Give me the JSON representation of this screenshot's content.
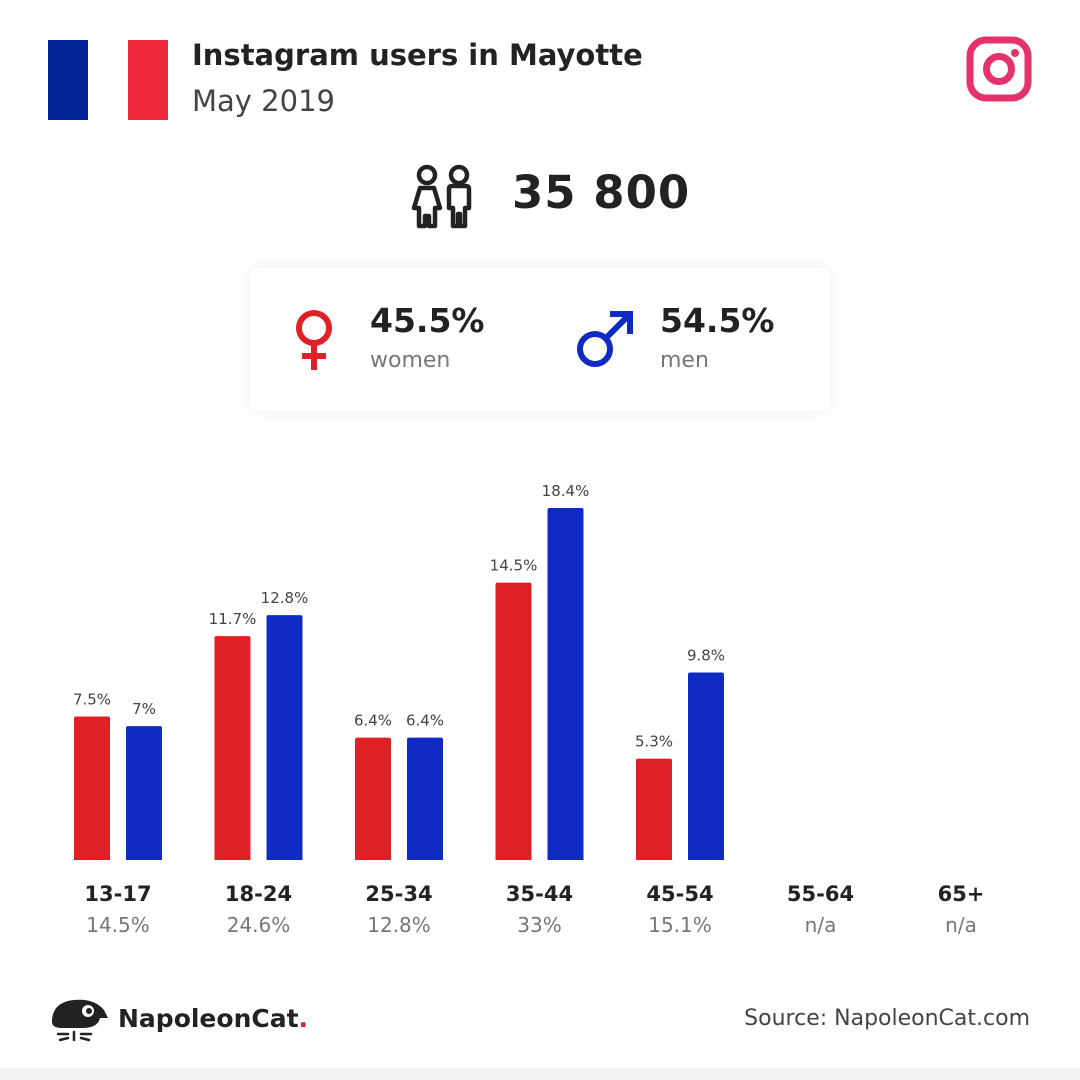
{
  "header": {
    "title": "Instagram users in Mayotte",
    "subtitle": "May 2019"
  },
  "total": {
    "value": "35 800"
  },
  "gender": {
    "women": {
      "pct": "45.5%",
      "label": "women"
    },
    "men": {
      "pct": "54.5%",
      "label": "men"
    }
  },
  "colors": {
    "women": "#df2027",
    "men": "#0f2bc4",
    "flag_blue": "#002395",
    "flag_red": "#ef2a3d",
    "instagram": "#e4336a"
  },
  "icons": {
    "flag": "france-flag-icon",
    "instagram": "instagram-icon",
    "people": "people-icon",
    "female": "female-icon",
    "male": "male-icon",
    "logo": "napoleoncat-logo-icon"
  },
  "chart_data": {
    "type": "bar",
    "categories": [
      "13-17",
      "18-24",
      "25-34",
      "35-44",
      "45-54",
      "55-64",
      "65+"
    ],
    "category_totals": [
      "14.5%",
      "24.6%",
      "12.8%",
      "33%",
      "15.1%",
      "n/a",
      "n/a"
    ],
    "series": [
      {
        "name": "women",
        "values": [
          7.5,
          11.7,
          6.4,
          14.5,
          5.3,
          null,
          null
        ],
        "labels": [
          "7.5%",
          "11.7%",
          "6.4%",
          "14.5%",
          "5.3%",
          "",
          ""
        ]
      },
      {
        "name": "men",
        "values": [
          7,
          12.8,
          6.4,
          18.4,
          9.8,
          null,
          null
        ],
        "labels": [
          "7%",
          "12.8%",
          "6.4%",
          "18.4%",
          "9.8%",
          "",
          ""
        ]
      }
    ],
    "ylim": [
      0,
      18.4
    ],
    "grid": false
  },
  "footer": {
    "brand": "NapoleonCat",
    "brand_dot": ".",
    "source": "Source: NapoleonCat.com"
  }
}
